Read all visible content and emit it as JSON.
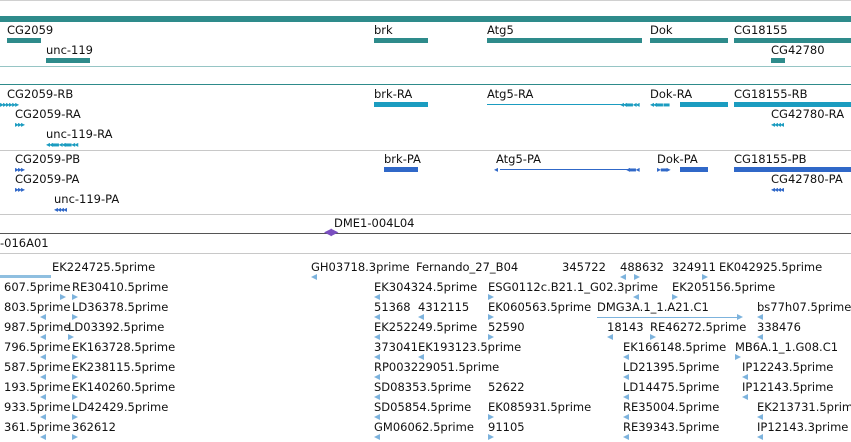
{
  "colors": {
    "gene": "#2e8b8b",
    "transcript_rb": "#1b9cc0",
    "transcript_pa": "#3068c8",
    "contig": "#7a4fc0",
    "est": "#7db3dd",
    "track_line": "#2e8b8b",
    "separator": "#cccccc"
  },
  "genes": {
    "cg2059": "CG2059",
    "unc119": "unc-119",
    "brk": "brk",
    "atg5": "Atg5",
    "dok": "Dok",
    "cg18155": "CG18155",
    "cg42780": "CG42780"
  },
  "transcripts": {
    "cg2059_rb": "CG2059-RB",
    "cg2059_ra": "CG2059-RA",
    "unc119_ra": "unc-119-RA",
    "brk_ra": "brk-RA",
    "atg5_ra": "Atg5-RA",
    "dok_ra": "Dok-RA",
    "cg18155_rb": "CG18155-RB",
    "cg42780_ra": "CG42780-RA"
  },
  "proteins": {
    "cg2059_pb": "CG2059-PB",
    "cg2059_pa": "CG2059-PA",
    "unc119_pa": "unc-119-PA",
    "brk_pa": "brk-PA",
    "atg5_pa": "Atg5-PA",
    "dok_pa": "Dok-PA",
    "cg18155_pb": "CG18155-PB",
    "cg42780_pa": "CG42780-PA"
  },
  "contigs": {
    "dme1": "DME1-004L04",
    "left": "-016A01"
  },
  "ests": {
    "r1": [
      "EK224725.5prime",
      "GH03718.3prime",
      "Fernando_27_B04",
      "345722",
      "488632",
      "324911",
      "EK042925.5prime"
    ],
    "r2": [
      "607.5prime",
      "RE30410.5prime",
      "EK304324.5prime",
      "ESG0112c.B21.1_G02.3prime",
      "EK205156.5prime"
    ],
    "r3": [
      "803.5prime",
      "LD36378.5prime",
      "51368",
      "4312115",
      "EK060563.5prime",
      "DMG3A.1_1.A21.C1",
      "bs77h07.5prime"
    ],
    "r4": [
      "987.5prime",
      "LD03392.5prime",
      "EK252249.5prime",
      "52590",
      "18143",
      "RE46272.5prime",
      "338476"
    ],
    "r5": [
      "796.5prime",
      "EK163728.5prime",
      "373041",
      "EK193123.5prime",
      "EK166148.5prime",
      "MB6A.1_1.G08.C1"
    ],
    "r6": [
      "587.5prime",
      "EK238115.5prime",
      "RP003229051.5prime",
      "LD21395.5prime",
      "IP12243.5prime"
    ],
    "r7": [
      "193.5prime",
      "EK140260.5prime",
      "SD08353.5prime",
      "52622",
      "LD14475.5prime",
      "IP12143.5prime"
    ],
    "r8": [
      "933.5prime",
      "LD42429.5prime",
      "SD05854.5prime",
      "EK085931.5prime",
      "RE35004.5prime",
      "EK213731.5prime"
    ],
    "r9": [
      "361.5prime",
      "362612",
      "GM06062.5prime",
      "91105",
      "RE39343.5prime",
      "IP12143.3prime"
    ]
  }
}
